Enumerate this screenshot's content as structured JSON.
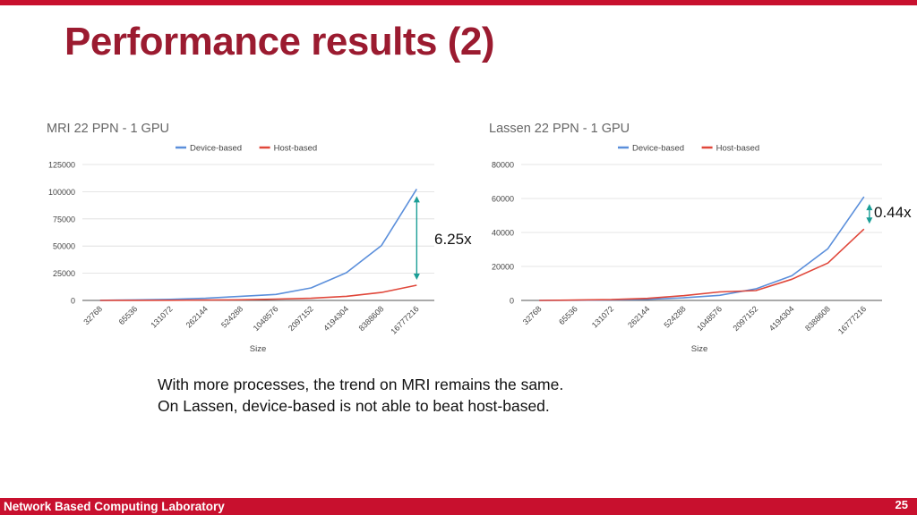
{
  "slide": {
    "title": "Performance results (2)",
    "caption_lines": [
      "With more processes, the trend on MRI remains the same.",
      "On Lassen, device-based is not able to beat host-based."
    ],
    "footer_lab": "Network Based Computing Laboratory",
    "page_number": "25",
    "accent_color": "#c8102e",
    "title_color": "#9b1b30"
  },
  "annotations": {
    "mri_ratio": "6.25x",
    "lassen_ratio": "0.44x",
    "arrow_color": "#1a9e96"
  },
  "chart_data": [
    {
      "type": "line",
      "title": "MRI 22 PPN - 1 GPU",
      "xlabel": "Size",
      "ylabel": "",
      "categories": [
        "32768",
        "65536",
        "131072",
        "262144",
        "524288",
        "1048576",
        "2097152",
        "4194304",
        "8388608",
        "16777216"
      ],
      "series": [
        {
          "name": "Device-based",
          "color": "#5b8fdb",
          "values": [
            100,
            500,
            1000,
            2000,
            3800,
            5500,
            11500,
            25500,
            50500,
            102500
          ]
        },
        {
          "name": "Host-based",
          "color": "#e0473a",
          "values": [
            0,
            100,
            200,
            300,
            600,
            1200,
            2000,
            3800,
            7300,
            14000
          ]
        }
      ],
      "ylim": [
        0,
        125000
      ],
      "yticks": [
        "0",
        "25000",
        "50000",
        "75000",
        "100000",
        "125000"
      ],
      "grid": true,
      "legend": "top"
    },
    {
      "type": "line",
      "title": "Lassen 22 PPN - 1 GPU",
      "xlabel": "Size",
      "ylabel": "",
      "categories": [
        "32768",
        "65536",
        "131072",
        "262144",
        "524288",
        "1048576",
        "2097152",
        "4194304",
        "8388608",
        "16777216"
      ],
      "series": [
        {
          "name": "Device-based",
          "color": "#5b8fdb",
          "values": [
            0,
            100,
            300,
            700,
            1500,
            3000,
            6800,
            14500,
            30500,
            61000
          ]
        },
        {
          "name": "Host-based",
          "color": "#e0473a",
          "values": [
            0,
            200,
            500,
            1200,
            2800,
            5000,
            5800,
            12500,
            22000,
            42000
          ]
        }
      ],
      "ylim": [
        0,
        80000
      ],
      "yticks": [
        "0",
        "20000",
        "40000",
        "60000",
        "80000"
      ],
      "grid": true,
      "legend": "top"
    }
  ]
}
